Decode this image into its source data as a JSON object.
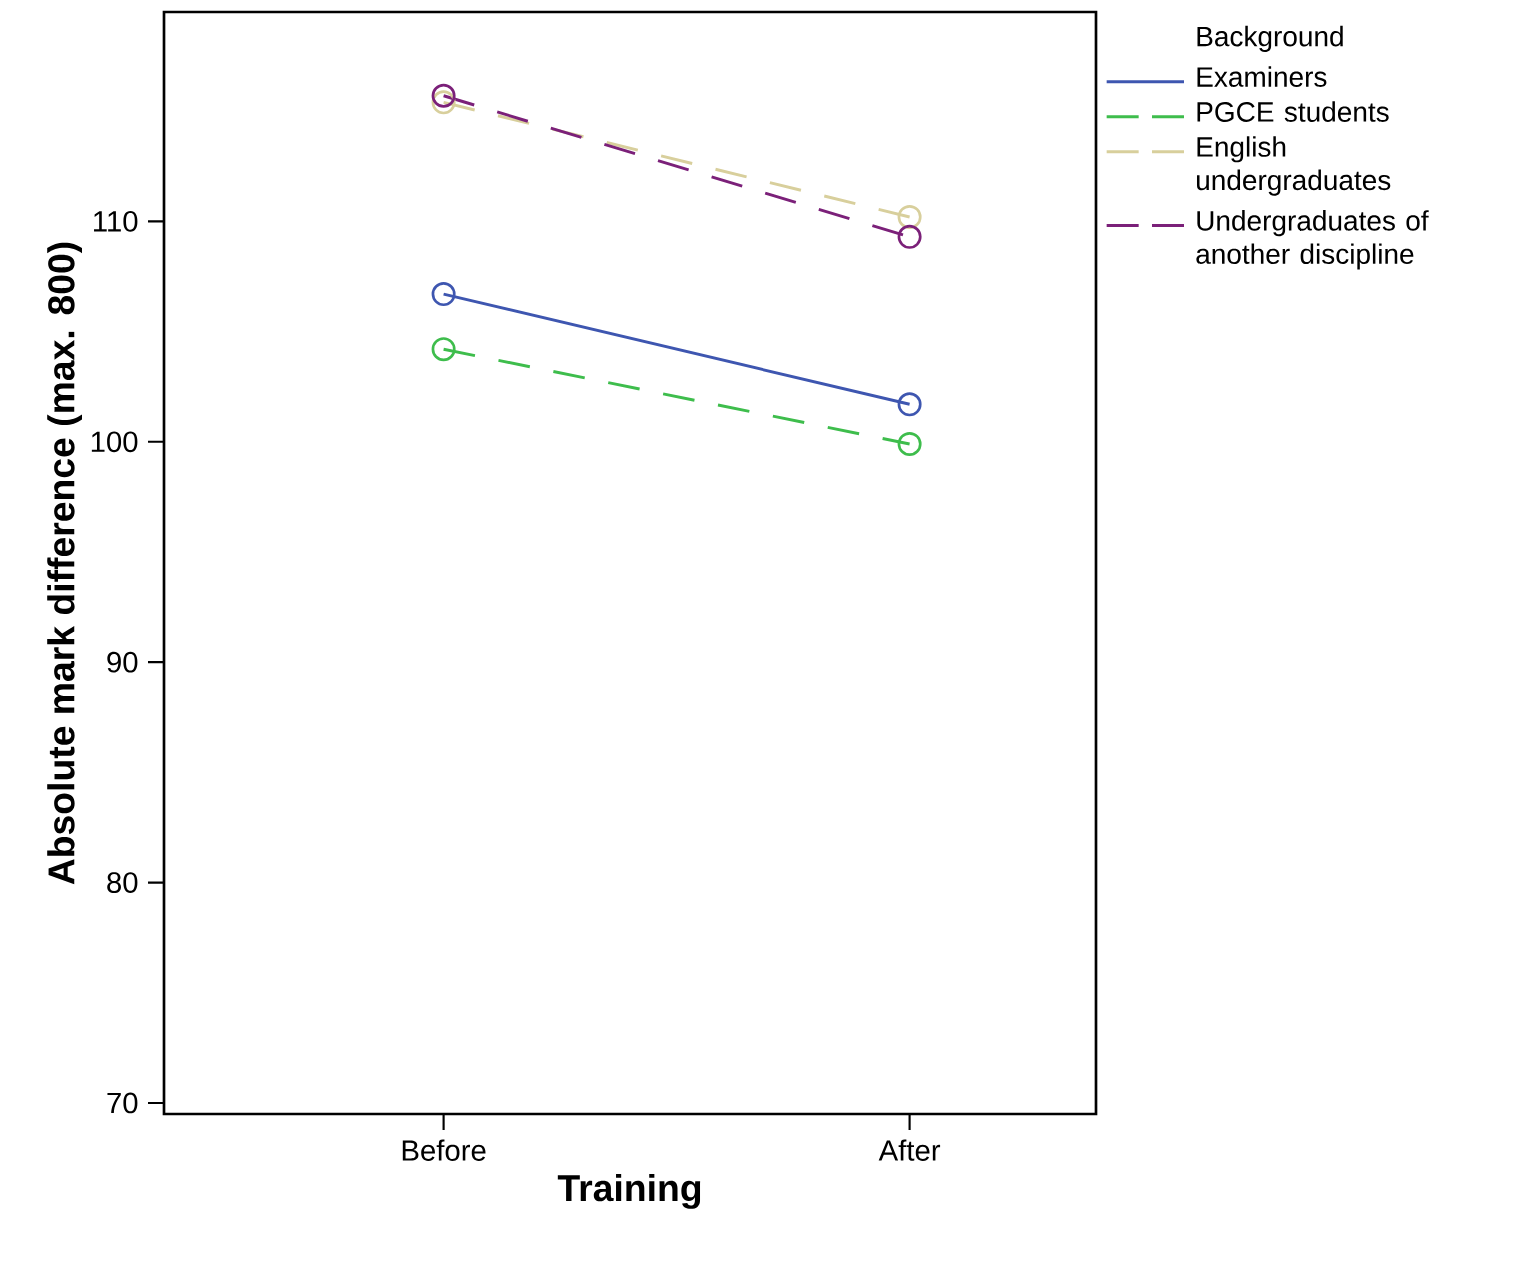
{
  "chart_data": {
    "type": "line",
    "xlabel": "Training",
    "ylabel": "Absolute mark difference (max. 800)",
    "legend_title": "Background",
    "categories": [
      "Before",
      "After"
    ],
    "series": [
      {
        "name": "Examiners",
        "color": "#3e56b0",
        "values": [
          106.7,
          101.7
        ],
        "line_style": "solid"
      },
      {
        "name": "PGCE students",
        "color": "#3ebd4c",
        "values": [
          104.2,
          99.9
        ],
        "line_style": "dashed"
      },
      {
        "name": "English undergraduates",
        "color": "#d8cf9c",
        "values": [
          115.4,
          110.2
        ],
        "line_style": "dashed"
      },
      {
        "name": "Undergraduates of another discipline",
        "color": "#7b2079",
        "values": [
          115.7,
          109.3
        ],
        "line_style": "dashed"
      }
    ],
    "ylim": [
      69.5,
      119.5
    ],
    "yticks": [
      70,
      80,
      90,
      100,
      110
    ],
    "marker": "circle",
    "legend": "right",
    "grid": false
  }
}
